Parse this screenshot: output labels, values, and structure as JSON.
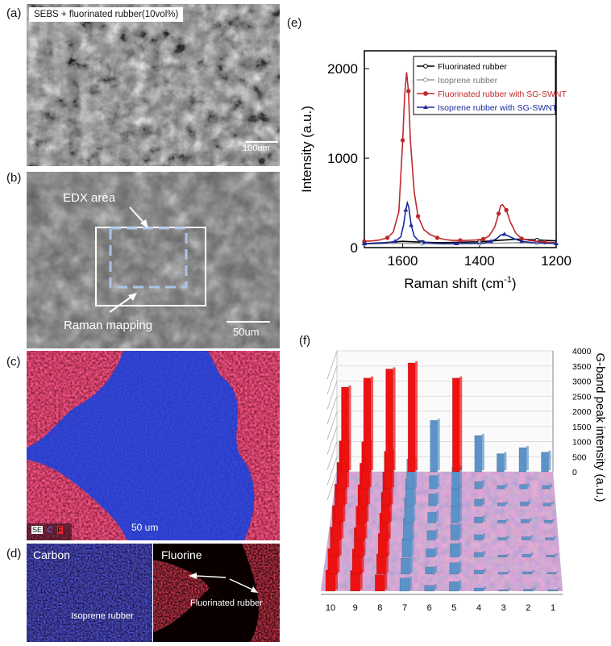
{
  "panels": {
    "a": {
      "label": "(a)",
      "caption": "SEBS + fluorinated rubber(10vol%)",
      "scale_label": "100um"
    },
    "b": {
      "label": "(b)",
      "edx_label": "EDX area",
      "raman_label": "Raman mapping",
      "scale_label": "50um"
    },
    "c": {
      "label": "(c)",
      "scale_label": "50 um",
      "legend": [
        "SE",
        "C",
        "F"
      ]
    },
    "d": {
      "label": "(d)",
      "left_title": "Carbon",
      "left_annotation": "Isoprene rubber",
      "right_title": "Fluorine",
      "right_annotation": "Fluorinated rubber"
    },
    "e": {
      "label": "(e)"
    },
    "f": {
      "label": "(f)"
    }
  },
  "chart_data": [
    {
      "id": "e",
      "type": "line",
      "xlabel": "Raman shift (cm",
      "xlabel_sup": "-1",
      "xlabel_end": ")",
      "ylabel": "Intensity (a.u.)",
      "xlim": [
        1700,
        1200
      ],
      "ylim": [
        0,
        2200
      ],
      "xticks": [
        1600,
        1400,
        1200
      ],
      "yticks": [
        0,
        1000,
        2000
      ],
      "legend_position": "top-right",
      "colors": [
        "#000000",
        "#999999",
        "#c0282c",
        "#1a2a9a"
      ],
      "series": [
        {
          "name": "Fluorinated rubber",
          "color": "#000000",
          "x": [
            1700,
            1650,
            1600,
            1550,
            1500,
            1450,
            1400,
            1350,
            1300,
            1250,
            1200
          ],
          "y": [
            45,
            55,
            70,
            60,
            55,
            60,
            65,
            80,
            95,
            85,
            75
          ]
        },
        {
          "name": "Isoprene rubber",
          "color": "#999999",
          "x": [
            1700,
            1650,
            1600,
            1550,
            1500,
            1450,
            1400,
            1350,
            1300,
            1250,
            1200
          ],
          "y": [
            40,
            45,
            50,
            45,
            40,
            42,
            45,
            50,
            55,
            50,
            48
          ]
        },
        {
          "name": "Fluorinated rubber with SG-SWNT",
          "color": "#c0282c",
          "x": [
            1700,
            1680,
            1660,
            1640,
            1625,
            1610,
            1600,
            1595,
            1590,
            1585,
            1580,
            1570,
            1560,
            1545,
            1530,
            1510,
            1490,
            1470,
            1450,
            1430,
            1410,
            1390,
            1375,
            1360,
            1350,
            1345,
            1340,
            1330,
            1320,
            1305,
            1290,
            1270,
            1250,
            1230,
            1200
          ],
          "y": [
            70,
            75,
            85,
            110,
            170,
            400,
            1200,
            1700,
            1960,
            1750,
            1200,
            620,
            350,
            200,
            150,
            110,
            90,
            80,
            80,
            80,
            85,
            95,
            130,
            230,
            380,
            470,
            480,
            420,
            290,
            160,
            100,
            80,
            70,
            60,
            55
          ]
        },
        {
          "name": "Isoprene rubber with SG-SWNT",
          "color": "#1a2a9a",
          "x": [
            1700,
            1670,
            1640,
            1620,
            1605,
            1598,
            1592,
            1588,
            1584,
            1578,
            1570,
            1560,
            1545,
            1520,
            1500,
            1460,
            1420,
            1390,
            1370,
            1355,
            1345,
            1335,
            1325,
            1310,
            1290,
            1260,
            1230,
            1200
          ],
          "y": [
            45,
            48,
            55,
            70,
            120,
            250,
            420,
            500,
            450,
            250,
            130,
            80,
            60,
            50,
            45,
            45,
            45,
            50,
            70,
            100,
            140,
            150,
            130,
            100,
            70,
            55,
            50,
            45
          ]
        }
      ]
    },
    {
      "id": "f",
      "type": "bar",
      "ylabel": "G-band peak intensity (a.u.)",
      "categories": [
        "10",
        "9",
        "8",
        "7",
        "6",
        "5",
        "4",
        "3",
        "2",
        "1"
      ],
      "ylim": [
        0,
        4000
      ],
      "yticks": [
        0,
        500,
        1000,
        1500,
        2000,
        2500,
        3000,
        3500,
        4000
      ],
      "colors": {
        "fluorinated": "#ee1111",
        "isoprene": "#5b93c9"
      },
      "back_row_values": [
        2800,
        3100,
        3400,
        3600,
        1700,
        3100,
        1200,
        600,
        800,
        650
      ]
    }
  ]
}
